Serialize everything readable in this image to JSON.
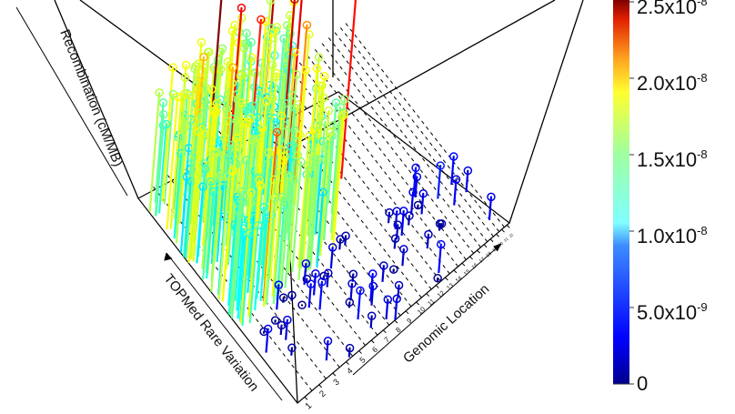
{
  "chart_data": {
    "type": "3d-stem",
    "title": "",
    "axes": {
      "x": {
        "label": "Genomic Location",
        "ticks": [
          "1",
          "2",
          "3",
          "4",
          "5",
          "6",
          "7",
          "8",
          "9",
          "10",
          "11",
          "12",
          "13",
          "14",
          "15",
          "16",
          "17",
          "18",
          "19",
          "20",
          "21",
          "22"
        ]
      },
      "y": {
        "label": "TOPMed Rare Variation"
      },
      "z": {
        "label": "Recombination (cM/MB)"
      }
    },
    "colorbar": {
      "colormap": "jet",
      "min": 0,
      "max": 2.6e-08,
      "ticks": [
        {
          "value": 0,
          "mantissa": "0",
          "exp": ""
        },
        {
          "value": 5e-09,
          "mantissa": "5.0x10",
          "exp": "-9"
        },
        {
          "value": 1e-08,
          "mantissa": "1.0x10",
          "exp": "-8"
        },
        {
          "value": 1.5e-08,
          "mantissa": "1.5x10",
          "exp": "-8"
        },
        {
          "value": 2e-08,
          "mantissa": "2.0x10",
          "exp": "-8"
        },
        {
          "value": 2.5e-08,
          "mantissa": "2.5x10",
          "exp": "-8"
        }
      ]
    },
    "grid": true,
    "notes": "Stems: each point is a genomic window (chromosome 1-22 along x, rare variation along y) with height and color encoding recombination rate. Dense cluster of ~1.0-1.6e-8 stems over chromosomes 1-7 at high rare variation; low (dark blue, <5e-9) points scattered near floor at low rare variation and chromosomes 8-22; few outliers reach ~2.2-2.6e-8 (red/dark red)."
  },
  "labels": {
    "genomic_location": "Genomic Location",
    "rare_variation": "TOPMed Rare Variation",
    "recombination": "Recombination (cM/MB)"
  }
}
